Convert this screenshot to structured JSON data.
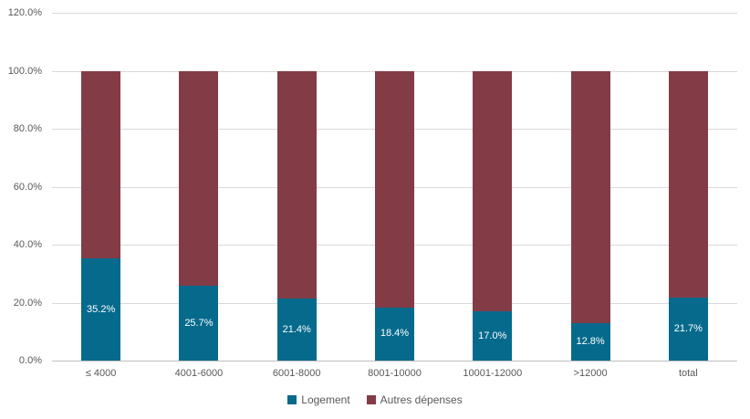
{
  "chart_data": {
    "type": "bar",
    "subtype": "stacked-100-percent-column",
    "title": "",
    "xlabel": "",
    "ylabel": "",
    "categories": [
      "≤ 4000",
      "4001-6000",
      "6001-8000",
      "8001-10000",
      "10001-12000",
      ">12000",
      "total"
    ],
    "series": [
      {
        "name": "Logement",
        "color": "#066a8c",
        "values": [
          35.2,
          25.7,
          21.4,
          18.4,
          17.0,
          12.8,
          21.7
        ],
        "data_labels": [
          "35.2%",
          "25.7%",
          "21.4%",
          "18.4%",
          "17.0%",
          "12.8%",
          "21.7%"
        ]
      },
      {
        "name": "Autres dépenses",
        "color": "#833c46",
        "values": [
          64.8,
          74.3,
          78.6,
          81.6,
          83.0,
          87.2,
          78.3
        ],
        "data_labels": []
      }
    ],
    "y_axis": {
      "min": 0,
      "max": 120,
      "step": 20,
      "tick_labels": [
        "0.0%",
        "20.0%",
        "40.0%",
        "60.0%",
        "80.0%",
        "100.0%",
        "120.0%"
      ]
    },
    "grid": "horizontal",
    "gridline_color": "#d9d9d9",
    "axis_line_color": "#bfbfbf",
    "axis_text_color": "#595959",
    "data_label_color": "#ffffff",
    "legend": {
      "position": "bottom",
      "entries": [
        {
          "label": "Logement",
          "color": "#066a8c"
        },
        {
          "label": "Autres dépenses",
          "color": "#833c46"
        }
      ]
    }
  }
}
